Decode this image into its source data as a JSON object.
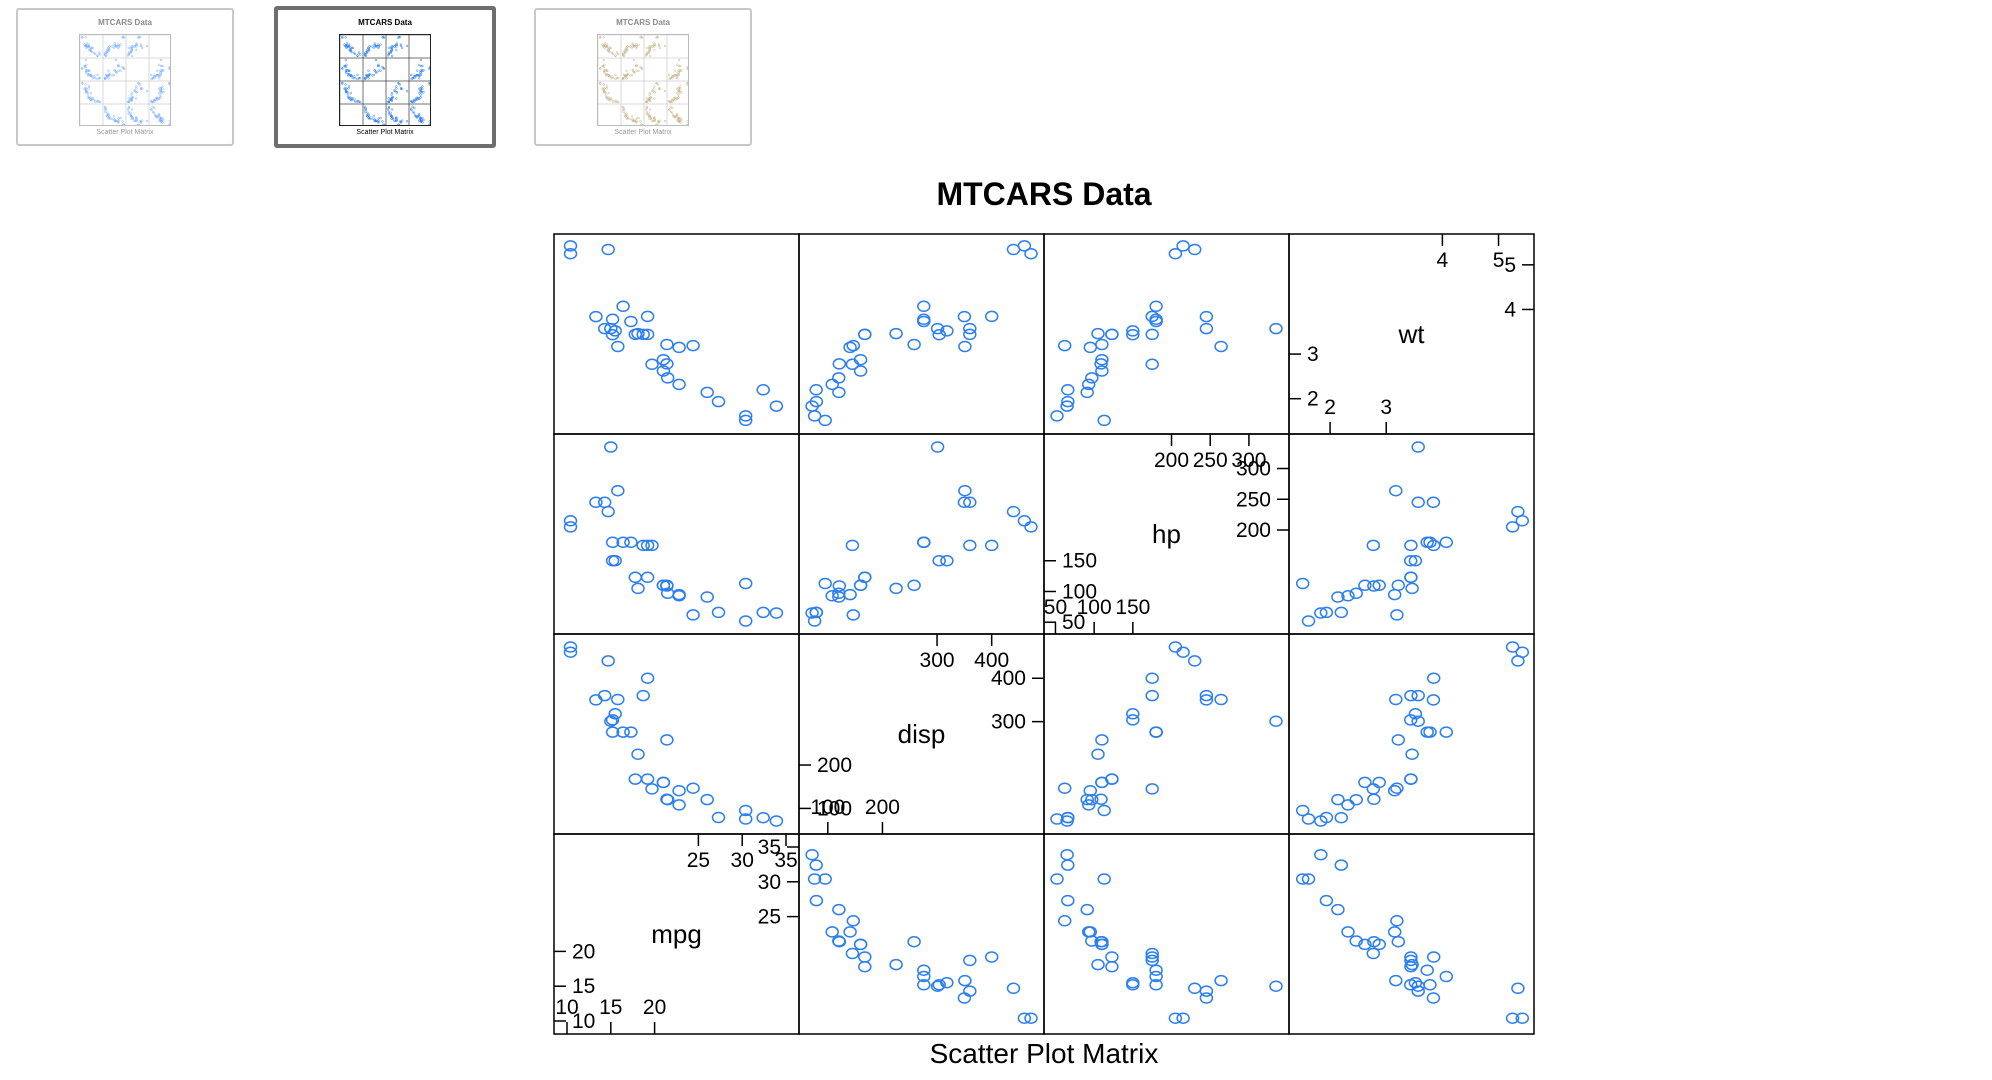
{
  "thumbnails": [
    {
      "title": "MTCARS Data",
      "footer": "Scatter Plot Matrix",
      "selected": false,
      "point_color": "#7fb2ff"
    },
    {
      "title": "MTCARS Data",
      "footer": "Scatter Plot Matrix",
      "selected": true,
      "point_color": "#2c7ff0"
    },
    {
      "title": "MTCARS Data",
      "footer": "Scatter Plot Matrix",
      "selected": false,
      "point_color": "#c9b98f"
    }
  ],
  "chart_data": {
    "type": "scatter",
    "title": "MTCARS Data",
    "xlabel": "Scatter Plot Matrix",
    "grid": false,
    "point_color": "#2c7ff0",
    "variables": [
      {
        "name": "mpg",
        "range": [
          10,
          35
        ],
        "lower_ticks": [
          10,
          15,
          20
        ],
        "upper_ticks": [
          25,
          30,
          35
        ]
      },
      {
        "name": "disp",
        "range": [
          71,
          472
        ],
        "lower_ticks": [
          100,
          200
        ],
        "upper_ticks": [
          300,
          400
        ]
      },
      {
        "name": "hp",
        "range": [
          52,
          335
        ],
        "lower_ticks": [
          50,
          100,
          150
        ],
        "upper_ticks": [
          200,
          250,
          300
        ]
      },
      {
        "name": "wt",
        "range": [
          1.5,
          5.4
        ],
        "lower_ticks": [
          2,
          3
        ],
        "upper_ticks": [
          4,
          5
        ]
      }
    ],
    "data": {
      "mpg": [
        21.0,
        21.0,
        22.8,
        21.4,
        18.7,
        18.1,
        14.3,
        24.4,
        22.8,
        19.2,
        17.8,
        16.4,
        17.3,
        15.2,
        10.4,
        10.4,
        14.7,
        32.4,
        30.4,
        33.9,
        21.5,
        15.5,
        15.2,
        13.3,
        19.2,
        27.3,
        26.0,
        30.4,
        15.8,
        19.7,
        15.0,
        21.4
      ],
      "disp": [
        160,
        160,
        108,
        258,
        360,
        225,
        360,
        146.7,
        140.8,
        167.6,
        167.6,
        275.8,
        275.8,
        275.8,
        472,
        460,
        440,
        78.7,
        75.7,
        71.1,
        120.1,
        318,
        304,
        350,
        400,
        79,
        120.3,
        95.1,
        351,
        145,
        301,
        121
      ],
      "hp": [
        110,
        110,
        93,
        110,
        175,
        105,
        245,
        62,
        95,
        123,
        123,
        180,
        180,
        180,
        205,
        215,
        230,
        66,
        52,
        65,
        97,
        150,
        150,
        245,
        175,
        66,
        91,
        113,
        264,
        175,
        335,
        109
      ],
      "wt": [
        2.62,
        2.875,
        2.32,
        3.215,
        3.44,
        3.46,
        3.57,
        3.19,
        3.15,
        3.44,
        3.44,
        4.07,
        3.73,
        3.78,
        5.25,
        5.424,
        5.345,
        2.2,
        1.615,
        1.835,
        2.465,
        3.52,
        3.435,
        3.84,
        3.845,
        1.935,
        2.14,
        1.513,
        3.17,
        2.77,
        3.57,
        2.78
      ]
    }
  }
}
